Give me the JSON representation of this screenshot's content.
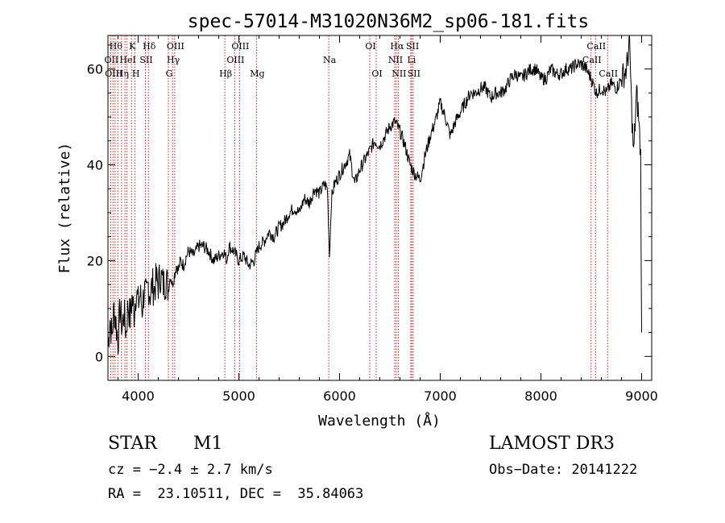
{
  "chart_data": {
    "type": "line",
    "title": "spec-57014-M31020N36M2_sp06-181.fits",
    "xlabel": "Wavelength (Å)",
    "ylabel": "Flux (relative)",
    "xlim": [
      3700,
      9100
    ],
    "ylim": [
      -5,
      67
    ],
    "xticks": [
      4000,
      5000,
      6000,
      7000,
      8000,
      9000
    ],
    "yticks": [
      0,
      20,
      40,
      60
    ],
    "grid": false,
    "series": [
      {
        "name": "flux",
        "points": [
          [
            3700,
            2
          ],
          [
            3720,
            8
          ],
          [
            3740,
            4
          ],
          [
            3760,
            10
          ],
          [
            3780,
            7
          ],
          [
            3800,
            3
          ],
          [
            3820,
            10
          ],
          [
            3840,
            6
          ],
          [
            3860,
            9
          ],
          [
            3880,
            5
          ],
          [
            3900,
            11
          ],
          [
            3920,
            8
          ],
          [
            3940,
            12
          ],
          [
            3960,
            9
          ],
          [
            3980,
            14
          ],
          [
            4000,
            11
          ],
          [
            4020,
            13
          ],
          [
            4040,
            10
          ],
          [
            4060,
            14
          ],
          [
            4080,
            12
          ],
          [
            4100,
            15
          ],
          [
            4120,
            13
          ],
          [
            4140,
            15
          ],
          [
            4160,
            14
          ],
          [
            4180,
            16
          ],
          [
            4200,
            15
          ],
          [
            4220,
            17
          ],
          [
            4250,
            15
          ],
          [
            4280,
            16
          ],
          [
            4300,
            14
          ],
          [
            4320,
            17
          ],
          [
            4340,
            15
          ],
          [
            4360,
            17
          ],
          [
            4380,
            19
          ],
          [
            4400,
            18
          ],
          [
            4420,
            20
          ],
          [
            4450,
            19
          ],
          [
            4480,
            21
          ],
          [
            4500,
            22
          ],
          [
            4550,
            21
          ],
          [
            4600,
            23
          ],
          [
            4650,
            23
          ],
          [
            4700,
            22
          ],
          [
            4750,
            20
          ],
          [
            4800,
            21
          ],
          [
            4850,
            22
          ],
          [
            4880,
            20
          ],
          [
            4900,
            23
          ],
          [
            4950,
            22
          ],
          [
            5000,
            20
          ],
          [
            5050,
            21
          ],
          [
            5100,
            19
          ],
          [
            5150,
            20
          ],
          [
            5200,
            23
          ],
          [
            5250,
            24
          ],
          [
            5300,
            26
          ],
          [
            5350,
            25
          ],
          [
            5400,
            27
          ],
          [
            5450,
            28
          ],
          [
            5500,
            30
          ],
          [
            5550,
            31
          ],
          [
            5600,
            30
          ],
          [
            5650,
            33
          ],
          [
            5700,
            32
          ],
          [
            5750,
            35
          ],
          [
            5800,
            34
          ],
          [
            5850,
            36
          ],
          [
            5880,
            35
          ],
          [
            5900,
            21
          ],
          [
            5920,
            33
          ],
          [
            5950,
            36
          ],
          [
            6000,
            38
          ],
          [
            6050,
            40
          ],
          [
            6100,
            42
          ],
          [
            6150,
            36
          ],
          [
            6200,
            39
          ],
          [
            6250,
            41
          ],
          [
            6300,
            43
          ],
          [
            6350,
            45
          ],
          [
            6400,
            44
          ],
          [
            6450,
            46
          ],
          [
            6500,
            48
          ],
          [
            6550,
            49
          ],
          [
            6600,
            47
          ],
          [
            6650,
            44
          ],
          [
            6700,
            40
          ],
          [
            6750,
            38
          ],
          [
            6800,
            37
          ],
          [
            6850,
            42
          ],
          [
            6900,
            46
          ],
          [
            6950,
            49
          ],
          [
            7000,
            53
          ],
          [
            7050,
            50
          ],
          [
            7100,
            46
          ],
          [
            7150,
            49
          ],
          [
            7200,
            51
          ],
          [
            7250,
            53
          ],
          [
            7300,
            55
          ],
          [
            7350,
            55
          ],
          [
            7400,
            56
          ],
          [
            7450,
            56
          ],
          [
            7500,
            54
          ],
          [
            7550,
            55
          ],
          [
            7600,
            55
          ],
          [
            7650,
            56
          ],
          [
            7700,
            58
          ],
          [
            7750,
            59
          ],
          [
            7800,
            58
          ],
          [
            7850,
            59
          ],
          [
            7900,
            60
          ],
          [
            7950,
            60
          ],
          [
            8000,
            58
          ],
          [
            8050,
            58
          ],
          [
            8100,
            60
          ],
          [
            8150,
            59
          ],
          [
            8200,
            59
          ],
          [
            8250,
            60
          ],
          [
            8300,
            60
          ],
          [
            8350,
            61
          ],
          [
            8400,
            61
          ],
          [
            8450,
            60
          ],
          [
            8500,
            58
          ],
          [
            8550,
            55
          ],
          [
            8600,
            56
          ],
          [
            8650,
            55
          ],
          [
            8700,
            57
          ],
          [
            8750,
            56
          ],
          [
            8800,
            58
          ],
          [
            8850,
            60
          ],
          [
            8880,
            66
          ],
          [
            8900,
            52
          ],
          [
            8920,
            42
          ],
          [
            8950,
            55
          ],
          [
            8970,
            50
          ],
          [
            8990,
            42
          ],
          [
            9000,
            5
          ]
        ]
      }
    ],
    "lines": [
      {
        "wave": 3727,
        "label": "OII",
        "row": 1
      },
      {
        "wave": 3750,
        "label": "OIII",
        "row": 2
      },
      {
        "wave": 3771,
        "label": "Hθ",
        "row": 0
      },
      {
        "wave": 3798,
        "label": "",
        "row": 0
      },
      {
        "wave": 3835,
        "label": "Hη",
        "row": 2
      },
      {
        "wave": 3869,
        "label": "",
        "row": 0
      },
      {
        "wave": 3889,
        "label": "HeI",
        "row": 1
      },
      {
        "wave": 3934,
        "label": "K",
        "row": 0
      },
      {
        "wave": 3969,
        "label": "H",
        "row": 2
      },
      {
        "wave": 4072,
        "label": "SII",
        "row": 1
      },
      {
        "wave": 4102,
        "label": "Hδ",
        "row": 0
      },
      {
        "wave": 4300,
        "label": "G",
        "row": 2
      },
      {
        "wave": 4341,
        "label": "Hγ",
        "row": 1
      },
      {
        "wave": 4363,
        "label": "OIII",
        "row": 0
      },
      {
        "wave": 4861,
        "label": "Hβ",
        "row": 2
      },
      {
        "wave": 4959,
        "label": "OIII",
        "row": 1
      },
      {
        "wave": 5007,
        "label": "OIII",
        "row": 0
      },
      {
        "wave": 5175,
        "label": "Mg",
        "row": 2
      },
      {
        "wave": 5893,
        "label": "Na",
        "row": 1
      },
      {
        "wave": 6300,
        "label": "OI",
        "row": 0
      },
      {
        "wave": 6364,
        "label": "OI",
        "row": 2
      },
      {
        "wave": 6548,
        "label": "NII",
        "row": 1
      },
      {
        "wave": 6563,
        "label": "Hα",
        "row": 0
      },
      {
        "wave": 6583,
        "label": "NII",
        "row": 2
      },
      {
        "wave": 6707,
        "label": "Li",
        "row": 1
      },
      {
        "wave": 6717,
        "label": "SII",
        "row": 0
      },
      {
        "wave": 6731,
        "label": "SII",
        "row": 2
      },
      {
        "wave": 8498,
        "label": "CaII",
        "row": 1
      },
      {
        "wave": 8542,
        "label": "CaII",
        "row": 0
      },
      {
        "wave": 8662,
        "label": "CaII",
        "row": 2
      }
    ]
  },
  "info": {
    "class": "STAR",
    "subclass": "M1",
    "survey": "LAMOST DR3",
    "cz": "cz = −2.4 ± 2.7 km/s",
    "obs_date": "Obs−Date: 20141222",
    "coords": "RA =  23.10511, DEC =  35.84063"
  }
}
